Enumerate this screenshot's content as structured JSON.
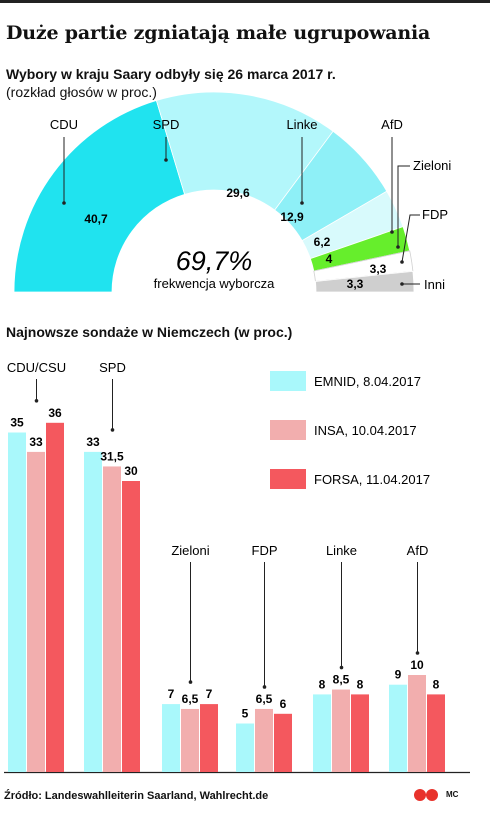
{
  "title": "Duże partie zgniatają małe ugrupowania",
  "section1": {
    "title": "Wybory w kraju Saary odbyły się 26 marca 2017 r.",
    "note": "(rozkład głosów w proc.)",
    "turnout_value": "69,7%",
    "turnout_label": "frekwencja wyborcza"
  },
  "section2": {
    "title": "Najnowsze sondaże w Niemczech (w proc.)"
  },
  "source": "Źródło: Landeswahlleiterin Saarland, Wahlrecht.de",
  "logo_text": "MC",
  "chart_data": [
    {
      "type": "pie",
      "subtype": "half-donut",
      "labels": [
        "CDU",
        "SPD",
        "Linke",
        "AfD",
        "Zieloni",
        "FDP",
        "Inni"
      ],
      "values": [
        40.7,
        29.6,
        12.9,
        6.2,
        4,
        3.3,
        3.3
      ],
      "value_labels": [
        "40,7",
        "29,6",
        "12,9",
        "6,2",
        "4",
        "3,3",
        "3,3"
      ],
      "colors": [
        "#20e3ef",
        "#b3f7fb",
        "#8ef0f7",
        "#d8fafc",
        "#66ee2c",
        "#ffffff",
        "#cfcfcf"
      ]
    },
    {
      "type": "bar",
      "categories": [
        "CDU/CSU",
        "SPD",
        "Zieloni",
        "FDP",
        "Linke",
        "AfD"
      ],
      "series": [
        {
          "name": "EMNID, 8.04.2017",
          "color": "#a9f8fb",
          "values": [
            35,
            33,
            7,
            5,
            8,
            9
          ],
          "labels": [
            "35",
            "33",
            "7",
            "5",
            "8",
            "9"
          ]
        },
        {
          "name": "INSA, 10.04.2017",
          "color": "#f2aeae",
          "values": [
            33,
            31.5,
            6.5,
            6.5,
            8.5,
            10
          ],
          "labels": [
            "33",
            "31,5",
            "6,5",
            "6,5",
            "8,5",
            "10"
          ]
        },
        {
          "name": "FORSA, 11.04.2017",
          "color": "#f4585e",
          "values": [
            36,
            30,
            7,
            6,
            8,
            8
          ],
          "labels": [
            "36",
            "30",
            "7",
            "6",
            "8",
            "8"
          ]
        }
      ],
      "legend_position": "top-right",
      "grid": false
    }
  ]
}
